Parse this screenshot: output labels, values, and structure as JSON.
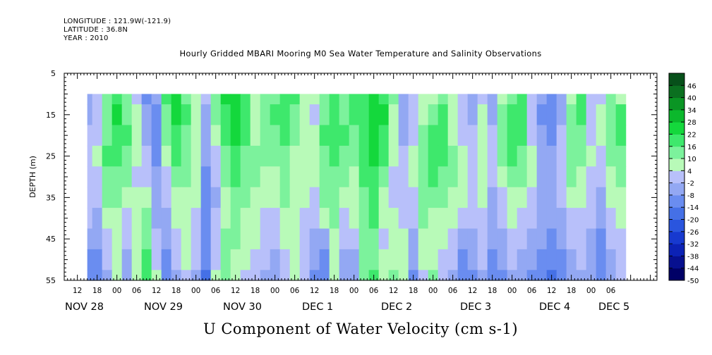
{
  "header": {
    "longitude": "LONGITUDE : 121.9W(-121.9)",
    "latitude": "LATITUDE : 36.8N",
    "year": "YEAR : 2010"
  },
  "chart_data": {
    "type": "heatmap",
    "title": "Hourly Gridded MBARI Mooring M0 Sea Water Temperature and Salinity Observations",
    "xlabel": "U Component of Water Velocity (cm s-1)",
    "ylabel": "DEPTH (m)",
    "ylim": [
      5,
      55
    ],
    "y_inverted": true,
    "y_ticks": [
      5,
      15,
      25,
      35,
      45,
      55
    ],
    "x_range_hours": [
      8,
      188
    ],
    "data_start_hour": 15,
    "data_depth_range": [
      10,
      55
    ],
    "x_hour_ticks": [
      {
        "h": 12,
        "label": "12"
      },
      {
        "h": 18,
        "label": "18"
      },
      {
        "h": 24,
        "label": "00"
      },
      {
        "h": 30,
        "label": "06"
      },
      {
        "h": 36,
        "label": "12"
      },
      {
        "h": 42,
        "label": "18"
      },
      {
        "h": 48,
        "label": "00"
      },
      {
        "h": 54,
        "label": "06"
      },
      {
        "h": 60,
        "label": "12"
      },
      {
        "h": 66,
        "label": "18"
      },
      {
        "h": 72,
        "label": "00"
      },
      {
        "h": 78,
        "label": "06"
      },
      {
        "h": 84,
        "label": "12"
      },
      {
        "h": 90,
        "label": "18"
      },
      {
        "h": 96,
        "label": "00"
      },
      {
        "h": 102,
        "label": "06"
      },
      {
        "h": 108,
        "label": "12"
      },
      {
        "h": 114,
        "label": "18"
      },
      {
        "h": 120,
        "label": "00"
      },
      {
        "h": 126,
        "label": "06"
      },
      {
        "h": 132,
        "label": "12"
      },
      {
        "h": 138,
        "label": "18"
      },
      {
        "h": 144,
        "label": "00"
      },
      {
        "h": 150,
        "label": "06"
      },
      {
        "h": 156,
        "label": "12"
      },
      {
        "h": 162,
        "label": "18"
      },
      {
        "h": 168,
        "label": "00"
      },
      {
        "h": 174,
        "label": "06"
      }
    ],
    "x_date_labels": [
      {
        "h": 8,
        "label": "NOV 28"
      },
      {
        "h": 32,
        "label": "NOV 29"
      },
      {
        "h": 56,
        "label": "NOV 30"
      },
      {
        "h": 80,
        "label": "DEC  1"
      },
      {
        "h": 104,
        "label": "DEC  2"
      },
      {
        "h": 128,
        "label": "DEC  3"
      },
      {
        "h": 152,
        "label": "DEC  4"
      },
      {
        "h": 170,
        "label": "DEC  5"
      }
    ],
    "colorbar_levels": [
      -50,
      -44,
      -38,
      -32,
      -26,
      -20,
      -14,
      -8,
      -2,
      4,
      10,
      16,
      22,
      28,
      34,
      40,
      46
    ],
    "colorbar_colors": [
      "#000066",
      "#07108f",
      "#0c22b5",
      "#1739cf",
      "#2a55de",
      "#4570e6",
      "#6a8df0",
      "#93a8f3",
      "#b8c0fa",
      "#b8fab8",
      "#7cf29c",
      "#3ee86c",
      "#14d83c",
      "#0bb82c",
      "#0a9524",
      "#0b7020",
      "#07501a"
    ],
    "depths": [
      10,
      15,
      20,
      25,
      30,
      35,
      40,
      45,
      50,
      55
    ],
    "times_hours": [
      15,
      18,
      21,
      24,
      27,
      30,
      33,
      36,
      39,
      42,
      45,
      48,
      51,
      54,
      57,
      60,
      63,
      66,
      69,
      72,
      75,
      78,
      81,
      84,
      87,
      90,
      93,
      96,
      99,
      102,
      105,
      108,
      111,
      114,
      117,
      120,
      123,
      126,
      129,
      132,
      135,
      138,
      141,
      144,
      147,
      150,
      153,
      156,
      159,
      162,
      165,
      168,
      171,
      174,
      177
    ],
    "values_u": [
      [
        -6,
        -2,
        10,
        20,
        12,
        2,
        -10,
        -8,
        18,
        24,
        14,
        6,
        -2,
        14,
        22,
        22,
        20,
        4,
        10,
        14,
        20,
        16,
        8,
        4,
        14,
        18,
        12,
        18,
        16,
        24,
        20,
        10,
        -4,
        2,
        6,
        8,
        14,
        4,
        -2,
        -8,
        2,
        -6,
        8,
        14,
        16,
        -2,
        -8,
        -12,
        -6,
        8,
        16,
        -2,
        2,
        12,
        8
      ],
      [
        -4,
        0,
        12,
        22,
        14,
        4,
        -8,
        -10,
        14,
        22,
        16,
        6,
        -4,
        10,
        20,
        24,
        18,
        6,
        12,
        16,
        18,
        12,
        8,
        2,
        14,
        20,
        14,
        16,
        18,
        26,
        22,
        8,
        -6,
        0,
        8,
        12,
        16,
        6,
        0,
        -6,
        4,
        -4,
        10,
        16,
        18,
        0,
        -10,
        -12,
        -4,
        10,
        16,
        0,
        4,
        12,
        16
      ],
      [
        -2,
        2,
        14,
        20,
        16,
        6,
        -4,
        -12,
        10,
        20,
        14,
        8,
        -6,
        6,
        18,
        22,
        16,
        8,
        12,
        14,
        16,
        10,
        6,
        4,
        16,
        20,
        16,
        14,
        20,
        24,
        20,
        6,
        -4,
        2,
        10,
        16,
        18,
        8,
        2,
        -2,
        6,
        -2,
        12,
        18,
        16,
        2,
        -8,
        -10,
        -2,
        12,
        14,
        2,
        4,
        14,
        18
      ],
      [
        0,
        4,
        16,
        18,
        14,
        4,
        -2,
        -10,
        6,
        16,
        12,
        8,
        -8,
        2,
        14,
        20,
        14,
        10,
        10,
        10,
        14,
        8,
        6,
        6,
        14,
        18,
        14,
        12,
        18,
        22,
        16,
        4,
        -2,
        4,
        12,
        18,
        16,
        10,
        4,
        0,
        8,
        0,
        10,
        16,
        12,
        4,
        -6,
        -8,
        0,
        12,
        12,
        4,
        2,
        10,
        14
      ],
      [
        2,
        2,
        14,
        14,
        10,
        2,
        2,
        -8,
        2,
        12,
        10,
        6,
        -10,
        -2,
        10,
        16,
        12,
        10,
        6,
        6,
        12,
        6,
        4,
        4,
        12,
        14,
        10,
        8,
        16,
        20,
        12,
        2,
        0,
        4,
        14,
        16,
        14,
        10,
        6,
        2,
        6,
        -2,
        6,
        12,
        10,
        4,
        -4,
        -6,
        0,
        10,
        8,
        2,
        -2,
        6,
        10
      ],
      [
        0,
        0,
        10,
        10,
        6,
        4,
        6,
        -6,
        -2,
        8,
        8,
        4,
        -12,
        -4,
        6,
        12,
        10,
        8,
        4,
        4,
        10,
        4,
        4,
        2,
        10,
        12,
        6,
        6,
        14,
        18,
        8,
        2,
        2,
        2,
        14,
        12,
        12,
        8,
        4,
        2,
        4,
        -4,
        2,
        8,
        6,
        2,
        -4,
        -6,
        -2,
        6,
        4,
        0,
        -6,
        4,
        8
      ],
      [
        -2,
        -4,
        6,
        6,
        2,
        6,
        10,
        -4,
        -6,
        4,
        6,
        2,
        -14,
        -2,
        8,
        10,
        8,
        6,
        2,
        2,
        8,
        4,
        2,
        0,
        6,
        10,
        2,
        4,
        14,
        16,
        4,
        4,
        2,
        0,
        12,
        8,
        8,
        4,
        0,
        0,
        2,
        -6,
        -2,
        4,
        2,
        0,
        -6,
        -8,
        -4,
        2,
        2,
        -2,
        -8,
        2,
        4
      ],
      [
        -6,
        -8,
        2,
        4,
        -2,
        8,
        14,
        0,
        -8,
        0,
        4,
        0,
        -14,
        0,
        10,
        10,
        6,
        4,
        0,
        0,
        4,
        4,
        2,
        -4,
        -6,
        8,
        -2,
        0,
        12,
        14,
        2,
        6,
        4,
        -4,
        8,
        6,
        4,
        0,
        -6,
        -4,
        0,
        -8,
        -6,
        0,
        -2,
        -4,
        -8,
        -12,
        -8,
        -2,
        0,
        -4,
        -10,
        -2,
        2
      ],
      [
        -10,
        -10,
        -2,
        6,
        -4,
        8,
        16,
        2,
        -10,
        -2,
        4,
        -2,
        -14,
        2,
        12,
        8,
        4,
        2,
        -2,
        -4,
        0,
        6,
        0,
        -8,
        -10,
        6,
        -6,
        -4,
        10,
        14,
        4,
        8,
        6,
        -8,
        4,
        8,
        2,
        -2,
        -10,
        -8,
        -2,
        -10,
        -8,
        -2,
        -4,
        -8,
        -12,
        -14,
        -10,
        -4,
        -2,
        -6,
        -12,
        -4,
        0
      ],
      [
        -12,
        -12,
        -4,
        8,
        -6,
        6,
        16,
        4,
        -12,
        -4,
        2,
        -4,
        -16,
        4,
        14,
        6,
        2,
        0,
        -4,
        -6,
        -2,
        8,
        -2,
        -10,
        -12,
        8,
        -8,
        -6,
        10,
        16,
        6,
        10,
        8,
        -10,
        2,
        10,
        0,
        -4,
        -12,
        -10,
        -4,
        -12,
        -10,
        -4,
        -6,
        -10,
        -14,
        -16,
        -12,
        -6,
        -4,
        -8,
        -14,
        -6,
        -2
      ]
    ]
  }
}
